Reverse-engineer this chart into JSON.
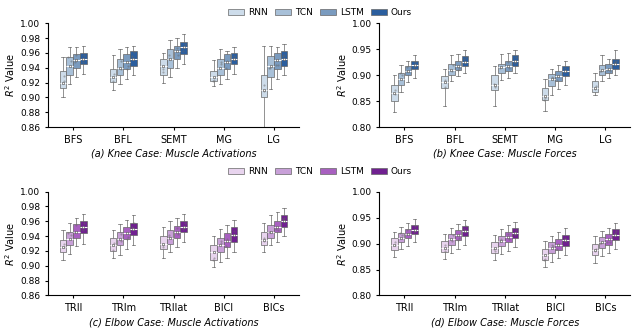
{
  "subplot_titles": [
    "(a) Knee Case: Muscle Activations",
    "(b) Knee Case: Muscle Forces",
    "(c) Elbow Case: Muscle Activations",
    "(d) Elbow Case: Muscle Forces"
  ],
  "knee_categories": [
    "BFS",
    "BFL",
    "SEMT",
    "MG",
    "LG"
  ],
  "elbow_categories": [
    "TRIl",
    "TRIm",
    "TRIlat",
    "BICl",
    "BICs"
  ],
  "blue_colors": [
    "#cddcea",
    "#a8c0d8",
    "#7a9bbf",
    "#2b5e9e"
  ],
  "purple_colors": [
    "#e8d4ee",
    "#c8a0d8",
    "#a860c0",
    "#702090"
  ],
  "knee_act": {
    "RNN": {
      "q1": [
        0.913,
        0.921,
        0.93,
        0.922,
        0.9
      ],
      "med": [
        0.92,
        0.928,
        0.942,
        0.928,
        0.91
      ],
      "q3": [
        0.935,
        0.938,
        0.952,
        0.936,
        0.93
      ],
      "wlo": [
        0.9,
        0.91,
        0.92,
        0.915,
        0.86
      ],
      "whi": [
        0.955,
        0.957,
        0.96,
        0.95,
        0.97
      ],
      "out_lo": [],
      "out_hi": []
    },
    "TCN": {
      "q1": [
        0.93,
        0.93,
        0.94,
        0.93,
        0.928
      ],
      "med": [
        0.942,
        0.94,
        0.952,
        0.94,
        0.942
      ],
      "q3": [
        0.955,
        0.952,
        0.965,
        0.952,
        0.956
      ],
      "wlo": [
        0.918,
        0.918,
        0.928,
        0.918,
        0.912
      ],
      "whi": [
        0.968,
        0.965,
        0.978,
        0.965,
        0.97
      ],
      "out_lo": [],
      "out_hi": []
    },
    "LSTM": {
      "q1": [
        0.94,
        0.938,
        0.952,
        0.938,
        0.938
      ],
      "med": [
        0.95,
        0.948,
        0.962,
        0.948,
        0.95
      ],
      "q3": [
        0.958,
        0.958,
        0.97,
        0.958,
        0.96
      ],
      "wlo": [
        0.928,
        0.925,
        0.94,
        0.925,
        0.925
      ],
      "whi": [
        0.968,
        0.968,
        0.98,
        0.963,
        0.968
      ],
      "out_lo": [],
      "out_hi": []
    },
    "Ours": {
      "q1": [
        0.945,
        0.942,
        0.958,
        0.945,
        0.942
      ],
      "med": [
        0.952,
        0.952,
        0.968,
        0.952,
        0.952
      ],
      "q3": [
        0.96,
        0.962,
        0.975,
        0.96,
        0.962
      ],
      "wlo": [
        0.932,
        0.93,
        0.945,
        0.932,
        0.93
      ],
      "whi": [
        0.97,
        0.97,
        0.985,
        0.968,
        0.972
      ],
      "out_lo": [],
      "out_hi": []
    }
  },
  "knee_force": {
    "RNN": {
      "q1": [
        0.85,
        0.876,
        0.872,
        0.852,
        0.868
      ],
      "med": [
        0.865,
        0.886,
        0.882,
        0.86,
        0.876
      ],
      "q3": [
        0.882,
        0.898,
        0.9,
        0.876,
        0.888
      ],
      "wlo": [
        0.83,
        0.84,
        0.84,
        0.832,
        0.862
      ],
      "whi": [
        0.9,
        0.912,
        0.918,
        0.892,
        0.905
      ],
      "out_lo": [
        0.828
      ],
      "out_hi": []
    },
    "TCN": {
      "q1": [
        0.882,
        0.9,
        0.905,
        0.88,
        0.9
      ],
      "med": [
        0.892,
        0.91,
        0.915,
        0.892,
        0.91
      ],
      "q3": [
        0.905,
        0.922,
        0.922,
        0.902,
        0.92
      ],
      "wlo": [
        0.868,
        0.888,
        0.89,
        0.862,
        0.888
      ],
      "whi": [
        0.92,
        0.938,
        0.94,
        0.912,
        0.938
      ],
      "out_lo": [],
      "out_hi": []
    },
    "LSTM": {
      "q1": [
        0.9,
        0.91,
        0.908,
        0.888,
        0.905
      ],
      "med": [
        0.908,
        0.918,
        0.918,
        0.898,
        0.912
      ],
      "q3": [
        0.918,
        0.928,
        0.928,
        0.908,
        0.922
      ],
      "wlo": [
        0.886,
        0.898,
        0.895,
        0.874,
        0.895
      ],
      "whi": [
        0.928,
        0.94,
        0.942,
        0.92,
        0.932
      ],
      "out_lo": [],
      "out_hi": []
    },
    "Ours": {
      "q1": [
        0.912,
        0.918,
        0.918,
        0.898,
        0.912
      ],
      "med": [
        0.92,
        0.926,
        0.928,
        0.908,
        0.922
      ],
      "q3": [
        0.928,
        0.936,
        0.938,
        0.918,
        0.932
      ],
      "wlo": [
        0.895,
        0.905,
        0.905,
        0.882,
        0.9
      ],
      "whi": [
        0.938,
        0.948,
        0.948,
        0.928,
        0.948
      ],
      "out_lo": [],
      "out_hi": [
        0.955
      ]
    }
  },
  "elbow_act": {
    "RNN": {
      "q1": [
        0.918,
        0.92,
        0.922,
        0.908,
        0.928
      ],
      "med": [
        0.925,
        0.928,
        0.93,
        0.918,
        0.935
      ],
      "q3": [
        0.935,
        0.938,
        0.94,
        0.928,
        0.945
      ],
      "wlo": [
        0.908,
        0.91,
        0.91,
        0.898,
        0.918
      ],
      "whi": [
        0.948,
        0.948,
        0.952,
        0.94,
        0.958
      ],
      "out_lo": [],
      "out_hi": []
    },
    "TCN": {
      "q1": [
        0.928,
        0.928,
        0.93,
        0.918,
        0.938
      ],
      "med": [
        0.936,
        0.936,
        0.938,
        0.928,
        0.946
      ],
      "q3": [
        0.945,
        0.945,
        0.948,
        0.938,
        0.955
      ],
      "wlo": [
        0.916,
        0.915,
        0.918,
        0.905,
        0.928
      ],
      "whi": [
        0.958,
        0.956,
        0.96,
        0.95,
        0.968
      ],
      "out_lo": [],
      "out_hi": []
    },
    "LSTM": {
      "q1": [
        0.938,
        0.936,
        0.938,
        0.925,
        0.945
      ],
      "med": [
        0.946,
        0.944,
        0.946,
        0.934,
        0.952
      ],
      "q3": [
        0.956,
        0.952,
        0.954,
        0.944,
        0.96
      ],
      "wlo": [
        0.926,
        0.922,
        0.925,
        0.91,
        0.932
      ],
      "whi": [
        0.965,
        0.962,
        0.965,
        0.955,
        0.972
      ],
      "out_lo": [],
      "out_hi": []
    },
    "Ours": {
      "q1": [
        0.944,
        0.942,
        0.945,
        0.932,
        0.952
      ],
      "med": [
        0.952,
        0.95,
        0.952,
        0.942,
        0.96
      ],
      "q3": [
        0.96,
        0.958,
        0.96,
        0.952,
        0.968
      ],
      "wlo": [
        0.93,
        0.928,
        0.932,
        0.918,
        0.94
      ],
      "whi": [
        0.97,
        0.968,
        0.97,
        0.962,
        0.978
      ],
      "out_lo": [],
      "out_hi": []
    }
  },
  "elbow_force": {
    "RNN": {
      "q1": [
        0.888,
        0.884,
        0.882,
        0.868,
        0.878
      ],
      "med": [
        0.898,
        0.892,
        0.892,
        0.878,
        0.888
      ],
      "q3": [
        0.91,
        0.904,
        0.902,
        0.89,
        0.9
      ],
      "wlo": [
        0.875,
        0.87,
        0.868,
        0.855,
        0.862
      ],
      "whi": [
        0.922,
        0.918,
        0.916,
        0.905,
        0.914
      ],
      "out_lo": [],
      "out_hi": []
    },
    "TCN": {
      "q1": [
        0.902,
        0.898,
        0.896,
        0.882,
        0.892
      ],
      "med": [
        0.91,
        0.908,
        0.905,
        0.892,
        0.902
      ],
      "q3": [
        0.92,
        0.918,
        0.915,
        0.902,
        0.912
      ],
      "wlo": [
        0.89,
        0.882,
        0.88,
        0.865,
        0.876
      ],
      "whi": [
        0.932,
        0.93,
        0.928,
        0.915,
        0.924
      ],
      "out_lo": [],
      "out_hi": []
    },
    "LSTM": {
      "q1": [
        0.91,
        0.906,
        0.902,
        0.888,
        0.898
      ],
      "med": [
        0.918,
        0.916,
        0.912,
        0.898,
        0.908
      ],
      "q3": [
        0.928,
        0.926,
        0.922,
        0.908,
        0.918
      ],
      "wlo": [
        0.896,
        0.89,
        0.886,
        0.872,
        0.882
      ],
      "whi": [
        0.94,
        0.938,
        0.935,
        0.922,
        0.93
      ],
      "out_lo": [],
      "out_hi": []
    },
    "Ours": {
      "q1": [
        0.918,
        0.914,
        0.91,
        0.895,
        0.906
      ],
      "med": [
        0.926,
        0.924,
        0.92,
        0.906,
        0.916
      ],
      "q3": [
        0.936,
        0.934,
        0.93,
        0.916,
        0.928
      ],
      "wlo": [
        0.903,
        0.898,
        0.894,
        0.878,
        0.89
      ],
      "whi": [
        0.948,
        0.946,
        0.942,
        0.93,
        0.94
      ],
      "out_lo": [],
      "out_hi": []
    }
  },
  "ylim_act": [
    0.86,
    1.0
  ],
  "ylim_force": [
    0.8,
    1.0
  ],
  "yticks_act": [
    0.86,
    0.88,
    0.9,
    0.92,
    0.94,
    0.96,
    0.98,
    1.0
  ],
  "yticks_force": [
    0.8,
    0.85,
    0.9,
    0.95,
    1.0
  ]
}
